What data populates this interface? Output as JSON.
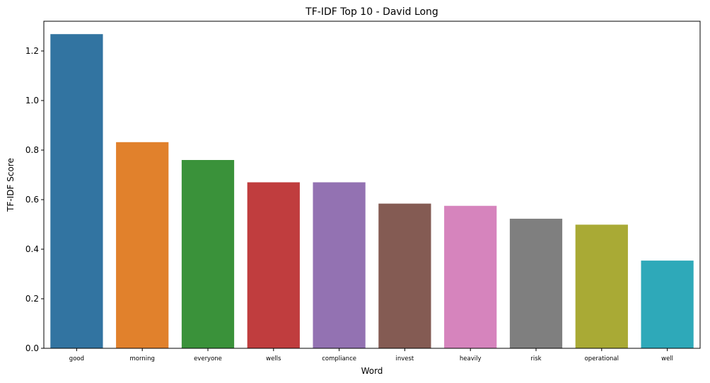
{
  "chart_data": {
    "type": "bar",
    "title": "TF-IDF Top 10 - David Long",
    "xlabel": "Word",
    "ylabel": "TF-IDF Score",
    "categories": [
      "good",
      "morning",
      "everyone",
      "wells",
      "compliance",
      "invest",
      "heavily",
      "risk",
      "operational",
      "well"
    ],
    "values": [
      1.268,
      0.832,
      0.76,
      0.67,
      0.67,
      0.584,
      0.575,
      0.523,
      0.499,
      0.354
    ],
    "colors": [
      "#3274a1",
      "#e1812c",
      "#3a923a",
      "#c03d3e",
      "#9372b2",
      "#845b53",
      "#d684bd",
      "#7f7f7f",
      "#a9aa35",
      "#2ea9b9"
    ],
    "ylim": [
      0,
      1.32
    ],
    "yticks": [
      "0.0",
      "0.2",
      "0.4",
      "0.6",
      "0.8",
      "1.0",
      "1.2"
    ],
    "grid": false,
    "legend": "none"
  }
}
